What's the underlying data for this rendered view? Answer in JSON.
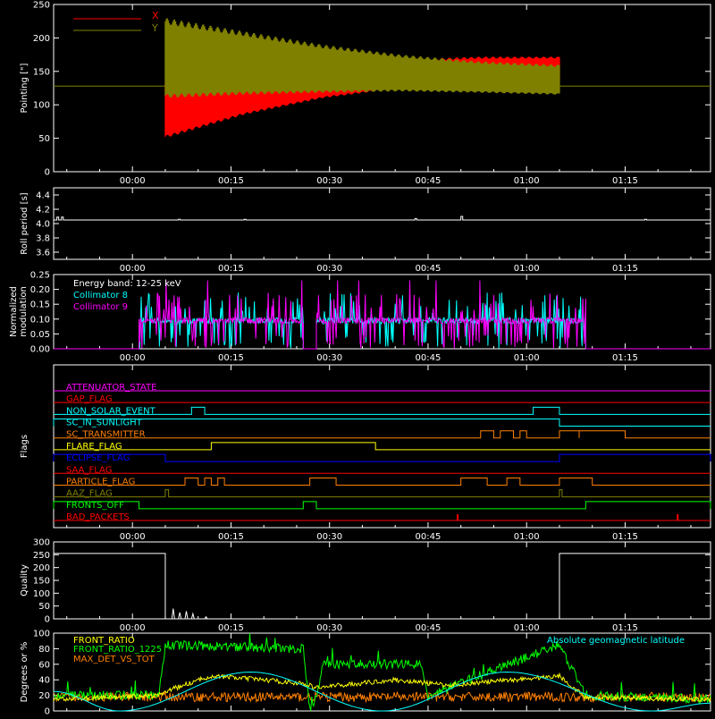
{
  "colors": {
    "background": "#000000",
    "axes": "#ffffff",
    "x_pointing": "#ff0000",
    "y_pointing": "#808000",
    "collimator8": "#00ffff",
    "collimator9": "#ff00ff",
    "front_ratio": "#ffff00",
    "front_ratio_1225": "#00ff00",
    "max_det_vs_tot": "#ff8000",
    "geomag": "#00ffff"
  },
  "time_axis": {
    "ticks": [
      "00:00",
      "00:15",
      "00:30",
      "00:45",
      "01:00",
      "01:15"
    ],
    "tick_minutes": [
      0,
      15,
      30,
      45,
      60,
      75
    ],
    "range_minutes": [
      -12,
      88
    ]
  },
  "chart_data": [
    {
      "panel": "pointing",
      "type": "line",
      "ylabel": "Pointing [\"]",
      "ylim": [
        0,
        250
      ],
      "yticks": [
        "0",
        "50",
        "100",
        "150",
        "200",
        "250"
      ],
      "ytick_values": [
        0,
        50,
        100,
        150,
        200,
        250
      ],
      "legend": [
        "X",
        "Y"
      ],
      "series": [
        {
          "name": "X",
          "start_min": 5,
          "end_min": 65,
          "values_min": [
            50,
            85,
            110,
            125,
            135,
            140
          ],
          "values_max": [
            135,
            150,
            160,
            168,
            172,
            172
          ]
        },
        {
          "name": "Y",
          "start_min": 5,
          "end_min": 65,
          "values_min": [
            110,
            115,
            118,
            120,
            118,
            115
          ],
          "values_max": [
            230,
            210,
            190,
            175,
            165,
            160
          ]
        }
      ],
      "reference_line": 128
    },
    {
      "panel": "roll",
      "type": "line",
      "ylabel": "Roll period [s]",
      "ylim": [
        3.5,
        4.5
      ],
      "yticks": [
        "3.6",
        "3.8",
        "4.0",
        "4.2",
        "4.4"
      ],
      "ytick_values": [
        3.6,
        3.8,
        4.0,
        4.2,
        4.4
      ],
      "baseline": 4.05
    },
    {
      "panel": "modulation",
      "type": "line",
      "ylabel": "Normalized modulation",
      "ylim": [
        0,
        0.25
      ],
      "yticks": [
        "0.00",
        "0.05",
        "0.10",
        "0.15",
        "0.20",
        "0.25"
      ],
      "ytick_values": [
        0,
        0.05,
        0.1,
        0.15,
        0.2,
        0.25
      ],
      "annotation": "Energy band: 12-25 keV",
      "series": [
        {
          "name": "Collimator 8",
          "segments": [
            [
              1,
              26
            ],
            [
              28,
              69
            ]
          ]
        },
        {
          "name": "Collimator 9",
          "segments": [
            [
              1,
              26
            ],
            [
              28,
              69
            ]
          ]
        }
      ]
    },
    {
      "panel": "flags",
      "type": "line",
      "ylabel": "Flags",
      "flags": [
        {
          "name": "ATTENUATOR_STATE",
          "color": "#ff00ff",
          "high": []
        },
        {
          "name": "GAP_FLAG",
          "color": "#ff0000",
          "high": []
        },
        {
          "name": "NON_SOLAR_EVENT",
          "color": "#00ffff",
          "high": [
            [
              9,
              11
            ],
            [
              61,
              65
            ]
          ]
        },
        {
          "name": "SC_IN_SUNLIGHT",
          "color": "#00ffff",
          "high": [
            [
              -12,
              65
            ]
          ]
        },
        {
          "name": "SC_TRANSMITTER",
          "color": "#ff8000",
          "high": [
            [
              53,
              55
            ],
            [
              56,
              58
            ],
            [
              59,
              60
            ],
            [
              65,
              68
            ],
            [
              68,
              75
            ]
          ]
        },
        {
          "name": "FLARE_FLAG",
          "color": "#ffff00",
          "high": [
            [
              12,
              37
            ]
          ]
        },
        {
          "name": "ECLIPSE_FLAG",
          "color": "#0000ff",
          "high": [
            [
              -12,
              5
            ],
            [
              65,
              88
            ]
          ]
        },
        {
          "name": "SAA_FLAG",
          "color": "#ff0000",
          "high": []
        },
        {
          "name": "PARTICLE_FLAG",
          "color": "#ff8000",
          "high": [
            [
              8,
              10
            ],
            [
              11,
              12
            ],
            [
              13,
              14
            ],
            [
              27,
              31
            ],
            [
              50,
              54
            ],
            [
              57,
              59
            ],
            [
              65,
              70
            ]
          ]
        },
        {
          "name": "AAZ_FLAG",
          "color": "#808000",
          "high": [
            [
              5,
              5.5
            ],
            [
              65,
              65.4
            ]
          ]
        },
        {
          "name": "FRONTS_OFF",
          "color": "#00ff00",
          "high": [
            [
              -12,
              1
            ],
            [
              26,
              28
            ],
            [
              69,
              88
            ]
          ]
        },
        {
          "name": "BAD_PACKETS",
          "color": "#ff0000",
          "spikes": [
            49.5,
            83
          ]
        }
      ]
    },
    {
      "panel": "quality",
      "type": "line",
      "ylabel": "Quality",
      "ylim": [
        0,
        300
      ],
      "yticks": [
        "0",
        "50",
        "100",
        "150",
        "200",
        "250",
        "300"
      ],
      "ytick_values": [
        0,
        50,
        100,
        150,
        200,
        250,
        300
      ],
      "high_segments": [
        [
          -12,
          5
        ],
        [
          65,
          88
        ]
      ],
      "high_value": 255
    },
    {
      "panel": "ratios",
      "type": "line",
      "ylabel": "Degrees or %",
      "ylim": [
        0,
        100
      ],
      "yticks": [
        "0",
        "20",
        "40",
        "60",
        "80",
        "100"
      ],
      "ytick_values": [
        0,
        20,
        40,
        60,
        80,
        100
      ],
      "legend": [
        "FRONT_RATIO",
        "FRONT_RATIO_1225",
        "MAX_DET_VS_TOT"
      ],
      "right_label": "Absolute geomagnetic latitude",
      "series": [
        {
          "name": "FRONT_RATIO",
          "x": [
            -12,
            4,
            5,
            12,
            20,
            26,
            28,
            40,
            48,
            55,
            65,
            69,
            88
          ],
          "y": [
            15,
            20,
            25,
            45,
            40,
            35,
            30,
            40,
            33,
            38,
            45,
            17,
            15
          ]
        },
        {
          "name": "FRONT_RATIO_1225",
          "x": [
            -12,
            4,
            5,
            26,
            27,
            28,
            29,
            44,
            45,
            65,
            69,
            88
          ],
          "y": [
            20,
            20,
            85,
            80,
            0,
            20,
            60,
            60,
            20,
            85,
            20,
            15
          ]
        },
        {
          "name": "MAX_DET_VS_TOT",
          "x": [
            -12,
            88
          ],
          "y": [
            18,
            18
          ]
        },
        {
          "name": "Absolute geomagnetic latitude",
          "x": [
            -12,
            -2,
            18,
            38,
            57,
            79,
            88
          ],
          "y": [
            25,
            0,
            50,
            0,
            50,
            0,
            10
          ]
        }
      ]
    }
  ]
}
